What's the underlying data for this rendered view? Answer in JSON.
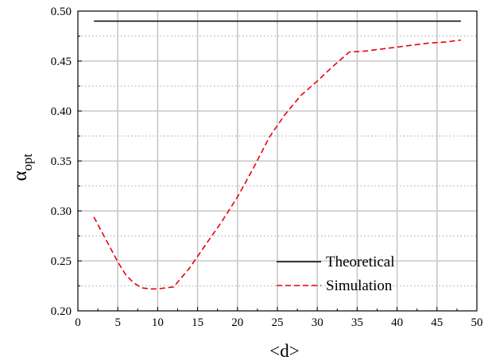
{
  "chart_data": {
    "type": "line",
    "xlabel": "<d>",
    "ylabel": {
      "base": "α",
      "subscript": "opt"
    },
    "xlim": [
      0,
      50
    ],
    "ylim": [
      0.2,
      0.5
    ],
    "xticks": [
      0,
      5,
      10,
      15,
      20,
      25,
      30,
      35,
      40,
      45,
      50
    ],
    "yticks": [
      0.2,
      0.25,
      0.3,
      0.35,
      0.4,
      0.45,
      0.5
    ],
    "ytick_labels": [
      "0.20",
      "0.25",
      "0.30",
      "0.35",
      "0.40",
      "0.45",
      "0.50"
    ],
    "grid": {
      "major": "solid",
      "minor": "dotted"
    },
    "legend_position": "bottom-right",
    "series": [
      {
        "name": "Theoretical",
        "color": "#000000",
        "dash": "solid",
        "x": [
          2,
          48
        ],
        "y": [
          0.49,
          0.49
        ]
      },
      {
        "name": "Simulation",
        "color": "#e8000b",
        "dash": "dashed",
        "x": [
          2,
          3,
          4,
          5,
          6,
          7,
          8,
          9,
          10,
          11,
          12,
          14,
          16,
          18,
          20,
          22,
          24,
          26,
          28,
          30,
          32,
          34,
          36,
          38,
          40,
          42,
          44,
          46,
          48
        ],
        "y": [
          0.294,
          0.279,
          0.264,
          0.249,
          0.236,
          0.228,
          0.223,
          0.222,
          0.222,
          0.223,
          0.224,
          0.243,
          0.266,
          0.289,
          0.314,
          0.343,
          0.374,
          0.397,
          0.416,
          0.43,
          0.445,
          0.459,
          0.46,
          0.462,
          0.464,
          0.466,
          0.468,
          0.469,
          0.471
        ]
      }
    ]
  }
}
